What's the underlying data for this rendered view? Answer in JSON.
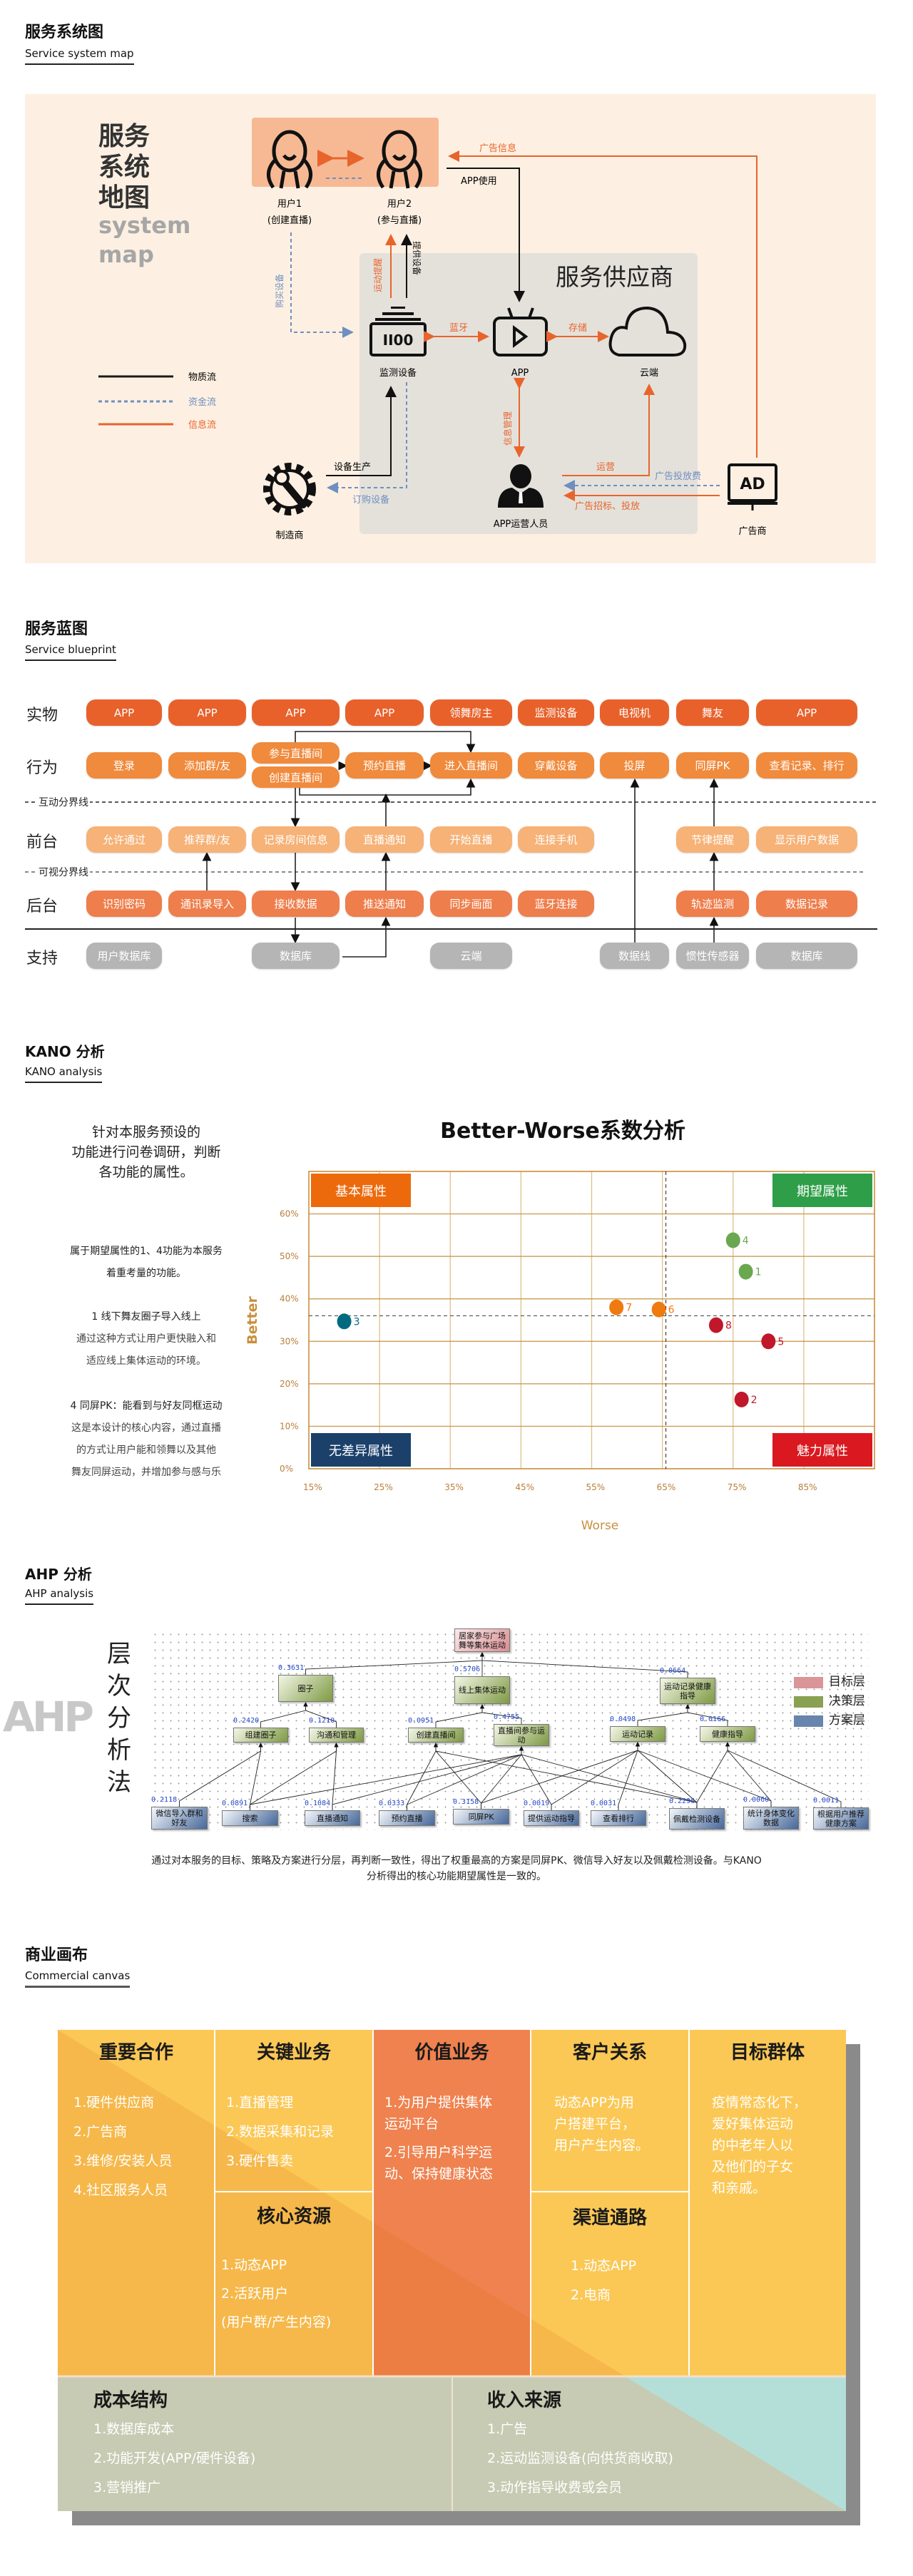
{
  "service_map": {
    "title": "服务系统图",
    "subtitle": "Service system map",
    "big_title": [
      "服务",
      "系统",
      "地图"
    ],
    "big_subtitle": [
      "system",
      "map"
    ],
    "users": [
      {
        "name": "用户1",
        "role": "(创建直播)"
      },
      {
        "name": "用户2",
        "role": "(参与直播)"
      }
    ],
    "supplier_title": "服务供应商",
    "nodes": {
      "device": "监测设备",
      "app": "APP",
      "cloud": "云端",
      "operator": "APP运营人员",
      "manufacturer": "制造商",
      "advertiser": "广告商",
      "ad_badge": "AD",
      "device_display": "II00"
    },
    "flows": {
      "ad_info": "广告信息",
      "app_use": "APP使用",
      "exercise_reminder": "运动提醒",
      "provide_device": "提供设备",
      "buy_device": "购买设备",
      "bluetooth": "蓝牙",
      "storage": "存储",
      "info_mgmt": "信息管理",
      "operation": "运营",
      "ad_fee": "广告投放费",
      "ad_bid": "广告招标、投放",
      "device_production": "设备生产",
      "order_device": "订购设备"
    },
    "legend": [
      {
        "label": "物质流",
        "color": "#1a1a1a"
      },
      {
        "label": "资金流",
        "color": "#6f8fc0"
      },
      {
        "label": "信息流",
        "color": "#e8642c"
      }
    ],
    "colors": {
      "background": "#fdf0e2",
      "users_box": "#f6b994",
      "supplier_box": "#e4e1db",
      "info": "#e8642c",
      "money": "#6f8fc0"
    }
  },
  "blueprint": {
    "title": "服务蓝图",
    "subtitle": "Service blueprint",
    "interaction_line": "互动分界线",
    "visibility_line": "可视分界线",
    "rows": [
      {
        "label": "实物",
        "color": "#e8612a",
        "cells": [
          "APP",
          "APP",
          "APP",
          "APP",
          "领舞房主",
          "监测设备",
          "电视机",
          "舞友",
          "APP"
        ]
      },
      {
        "label": "行为",
        "color": "#f08a3c",
        "cells": [
          "登录",
          "添加群/友",
          [
            "参与直播间",
            "创建直播间"
          ],
          "预约直播",
          "进入直播间",
          "穿戴设备",
          "投屏",
          "同屏PK",
          "查看记录、排行"
        ]
      },
      {
        "label": "前台",
        "color": "#f6b277",
        "cells": [
          "允许通过",
          "推荐群/友",
          "记录房间信息",
          "直播通知",
          "开始直播",
          "连接手机",
          null,
          "节律提醒",
          "显示用户数据"
        ]
      },
      {
        "label": "后台",
        "color": "#ee7e4c",
        "cells": [
          "识别密码",
          "通讯录导入",
          "接收数据",
          "推送通知",
          "同步画面",
          "蓝牙连接",
          null,
          "轨迹监测",
          "数据记录"
        ]
      },
      {
        "label": "支持",
        "color": "#b5b5b5",
        "cells": [
          "用户数据库",
          null,
          "数据库",
          null,
          "云端",
          null,
          "数据线",
          "惯性传感器",
          "数据库"
        ]
      }
    ]
  },
  "kano": {
    "title": "KANO 分析",
    "subtitle": "KANO analysis",
    "intro": [
      "针对本服务预设的",
      "功能进行问卷调研，判断",
      "各功能的属性。"
    ],
    "note": [
      "属于期望属性的1、4功能为本服务",
      "着重考量的功能。"
    ],
    "item1": [
      "1 线下舞友圈子导入线上",
      "通过这种方式让用户更快融入和",
      "适应线上集体运动的环境。"
    ],
    "item4": [
      "4 同屏PK：能看到与好友同框运动",
      "这是本设计的核心内容，通过直播",
      "的方式让用户能和领舞以及其他",
      "舞友同屏运动，并增加参与感与乐"
    ]
  },
  "chart_data": {
    "type": "scatter",
    "title": "Better-Worse系数分析",
    "xlabel": "Worse",
    "ylabel": "Better",
    "xlim": [
      15,
      95
    ],
    "ylim": [
      0,
      70
    ],
    "x_ticks": [
      "15%",
      "25%",
      "35%",
      "45%",
      "55%",
      "65%",
      "75%",
      "85%"
    ],
    "y_ticks": [
      "0%",
      "10%",
      "20%",
      "30%",
      "40%",
      "50%",
      "60%"
    ],
    "grid": true,
    "reference_lines": {
      "x": 65.5,
      "y": 36
    },
    "quadrants": [
      {
        "label": "基本属性",
        "position": "top-left",
        "color": "#ec6a0c"
      },
      {
        "label": "期望属性",
        "position": "top-right",
        "color": "#2e9e48"
      },
      {
        "label": "无差异属性",
        "position": "bottom-left",
        "color": "#1b406a"
      },
      {
        "label": "魅力属性",
        "position": "bottom-right",
        "color": "#d9191f"
      }
    ],
    "points": [
      {
        "label": "1",
        "x": 76.8,
        "y": 46.4,
        "color": "#6aa84f"
      },
      {
        "label": "2",
        "x": 76.2,
        "y": 16.3,
        "color": "#c0172b"
      },
      {
        "label": "3",
        "x": 20.0,
        "y": 34.7,
        "color": "#006b80"
      },
      {
        "label": "4",
        "x": 75.0,
        "y": 53.8,
        "color": "#6aa84f"
      },
      {
        "label": "5",
        "x": 80.0,
        "y": 30.0,
        "color": "#c0172b"
      },
      {
        "label": "6",
        "x": 64.5,
        "y": 37.5,
        "color": "#ee7a10"
      },
      {
        "label": "7",
        "x": 58.5,
        "y": 38.0,
        "color": "#ee7a10"
      },
      {
        "label": "8",
        "x": 72.6,
        "y": 33.8,
        "color": "#c0172b"
      }
    ]
  },
  "ahp": {
    "title": "AHP 分析",
    "subtitle": "AHP analysis",
    "side_title": [
      "层",
      "次",
      "分",
      "析",
      "法"
    ],
    "watermark": "AHP",
    "legend": [
      {
        "label": "目标层",
        "color": "#d99597"
      },
      {
        "label": "决策层",
        "color": "#8aa052"
      },
      {
        "label": "方案层",
        "color": "#6785ad"
      }
    ],
    "nodes": [
      {
        "id": "goal",
        "level": "goal",
        "label": "居家参与广场舞等集体运动",
        "weight": null,
        "parents": []
      },
      {
        "id": "c1",
        "level": "decision",
        "label": "圈子",
        "weight": "0.3631",
        "parents": [
          "goal"
        ]
      },
      {
        "id": "c2",
        "level": "decision",
        "label": "线上集体运动",
        "weight": "0.5706",
        "parents": [
          "goal"
        ]
      },
      {
        "id": "c3",
        "level": "decision",
        "label": "运动记录健康指导",
        "weight": "0.0664",
        "parents": [
          "goal"
        ]
      },
      {
        "id": "s1",
        "level": "decision",
        "label": "组建圈子",
        "weight": "0.2420",
        "parents": [
          "c1"
        ]
      },
      {
        "id": "s2",
        "level": "decision",
        "label": "沟通和管理",
        "weight": "0.1210",
        "parents": [
          "c1"
        ]
      },
      {
        "id": "s3",
        "level": "decision",
        "label": "创建直播间",
        "weight": "0.0951",
        "parents": [
          "c2"
        ]
      },
      {
        "id": "s4",
        "level": "decision",
        "label": "直播间参与运动",
        "weight": "0.4755",
        "parents": [
          "c2"
        ]
      },
      {
        "id": "s5",
        "level": "decision",
        "label": "运动记录",
        "weight": "0.0498",
        "parents": [
          "c3"
        ]
      },
      {
        "id": "s6",
        "level": "decision",
        "label": "健康指导",
        "weight": "0.0166",
        "parents": [
          "c3"
        ]
      },
      {
        "id": "a1",
        "level": "scheme",
        "label": "微信导入群和好友",
        "weight": "0.2118",
        "parents": [
          "s1"
        ]
      },
      {
        "id": "a2",
        "level": "scheme",
        "label": "搜索",
        "weight": "0.0891",
        "parents": [
          "s1",
          "s2",
          "s4"
        ]
      },
      {
        "id": "a3",
        "level": "scheme",
        "label": "直播通知",
        "weight": "0.1084",
        "parents": [
          "s2",
          "s4"
        ]
      },
      {
        "id": "a4",
        "level": "scheme",
        "label": "预约直播",
        "weight": "0.0333",
        "parents": [
          "s3",
          "s4"
        ]
      },
      {
        "id": "a5",
        "level": "scheme",
        "label": "同屏PK",
        "weight": "0.3158",
        "parents": [
          "s3",
          "s4",
          "s5"
        ]
      },
      {
        "id": "a6",
        "level": "scheme",
        "label": "提供运动指导",
        "weight": "0.0019",
        "parents": [
          "s4",
          "s5"
        ]
      },
      {
        "id": "a7",
        "level": "scheme",
        "label": "查看排行",
        "weight": "0.0031",
        "parents": [
          "s5"
        ]
      },
      {
        "id": "a8",
        "level": "scheme",
        "label": "佩戴检测设备",
        "weight": "0.2296",
        "parents": [
          "s3",
          "s4",
          "s5",
          "s6"
        ]
      },
      {
        "id": "a9",
        "level": "scheme",
        "label": "统计身体变化数据",
        "weight": "0.0060",
        "parents": [
          "s5",
          "s6"
        ]
      },
      {
        "id": "a10",
        "level": "scheme",
        "label": "根据用户推荐健康方案",
        "weight": "0.0011",
        "parents": [
          "s6"
        ]
      }
    ],
    "conclusion": [
      "通过对本服务的目标、策略及方案进行分层，再判断一致性，得出了权重最高的方案是同屏PK、微信导入好友以及佩戴检测设备。与KANO",
      "分析得出的核心功能期望属性是一致的。"
    ]
  },
  "canvas": {
    "title": "商业画布",
    "subtitle": "Commercial canvas",
    "partners": {
      "header": "重要合作",
      "items": [
        "1.硬件供应商",
        "2.广告商",
        "3.维修/安装人员",
        "4.社区服务人员"
      ]
    },
    "activities": {
      "header": "关键业务",
      "items": [
        "1.直播管理",
        "2.数据采集和记录",
        "3.硬件售卖"
      ]
    },
    "resources": {
      "header": "核心资源",
      "items": [
        "1.动态APP",
        "2.活跃用户",
        "(用户群/产生内容)"
      ]
    },
    "value": {
      "header": "价值业务",
      "items": [
        "1.为用户提供集体",
        "运动平台",
        "2.引导用户科学运",
        "动、保持健康状态"
      ]
    },
    "relations": {
      "header": "客户关系",
      "items": [
        "动态APP为用",
        "户搭建平台，",
        "用户产生内容。"
      ]
    },
    "channels": {
      "header": "渠道通路",
      "items": [
        "1.动态APP",
        "2.电商"
      ]
    },
    "segments": {
      "header": "目标群体",
      "items": [
        "疫情常态化下，",
        "爱好集体运动",
        "的中老年人以",
        "及他们的子女",
        "和亲戚。"
      ]
    },
    "costs": {
      "header": "成本结构",
      "items": [
        "1.数据库成本",
        "2.功能开发(APP/硬件设备)",
        "3.营销推广"
      ]
    },
    "revenue": {
      "header": "收入来源",
      "items": [
        "1.广告",
        "2.运动监测设备(向供货商收取)",
        "3.动作指导收费或会员"
      ]
    }
  }
}
